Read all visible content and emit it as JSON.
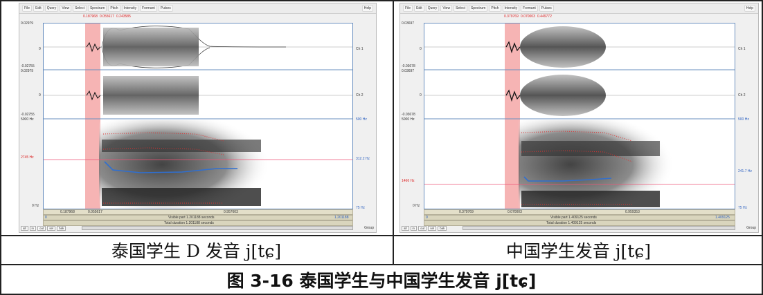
{
  "menu_items": [
    "File",
    "Edit",
    "Query",
    "View",
    "Select",
    "Spectrum",
    "Pitch",
    "Intensity",
    "Formant",
    "Pulses"
  ],
  "help_label": "Help",
  "buttons": [
    "all",
    "in",
    "out",
    "sel",
    "bak"
  ],
  "group_label": "Group",
  "left": {
    "selection_times": {
      "a": "0.187968",
      "b": "0.055617",
      "c": "0.243585"
    },
    "ch1_max": "0.02979",
    "ch1_zero": "0",
    "ch1_min": "-0.02755",
    "ch2_max": "0.02979",
    "ch2_zero": "0",
    "ch2_min": "-0.02755",
    "ch1_label": "Ch 1",
    "ch2_label": "Ch 2",
    "spec_top": "5000 Hz",
    "spec_mid": "2745 Hz",
    "spec_bottom": "0 Hz",
    "pitch_top": "500 Hz",
    "pitch_mid": "312.2 Hz",
    "pitch_bottom": "75 Hz",
    "t1": "0.187968",
    "t2": "0.055617",
    "t3": "0.957603",
    "start": "0",
    "visible": "Visible part 1.201188 seconds",
    "end": "1.201188",
    "total": "Total duration 1.201188 seconds",
    "caption": "泰国学生 D 发音 j[tɕ]"
  },
  "right": {
    "selection_times": {
      "a": "0.379769",
      "b": "0.070003",
      "c": "0.449772"
    },
    "ch1_max": "0.03697",
    "ch1_zero": "0",
    "ch1_min": "-0.03678",
    "ch2_max": "0.03697",
    "ch2_zero": "0",
    "ch2_min": "-0.03678",
    "ch1_label": "Ch 1",
    "ch2_label": "Ch 2",
    "spec_top": "5000 Hz",
    "spec_mid": "1466 Hz",
    "spec_bottom": "0 Hz",
    "pitch_top": "500 Hz",
    "pitch_mid": "241.7 Hz",
    "pitch_bottom": "75 Hz",
    "t1": "0.379769",
    "t2": "0.070003",
    "t3": "0.959353",
    "start": "0",
    "visible": "Visible part 1.409125 seconds",
    "end": "1.409125",
    "total": "Total duration 1.409125 seconds",
    "caption": "中国学生发音 j[tɕ]"
  },
  "figure_title": "图 3-16 泰国学生与中国学生发音 j[tɕ]",
  "colors": {
    "selection": "#f4a7a7",
    "pitch": "#2f6fd1",
    "formant": "#e03030",
    "frame": "#6a8fbf"
  }
}
